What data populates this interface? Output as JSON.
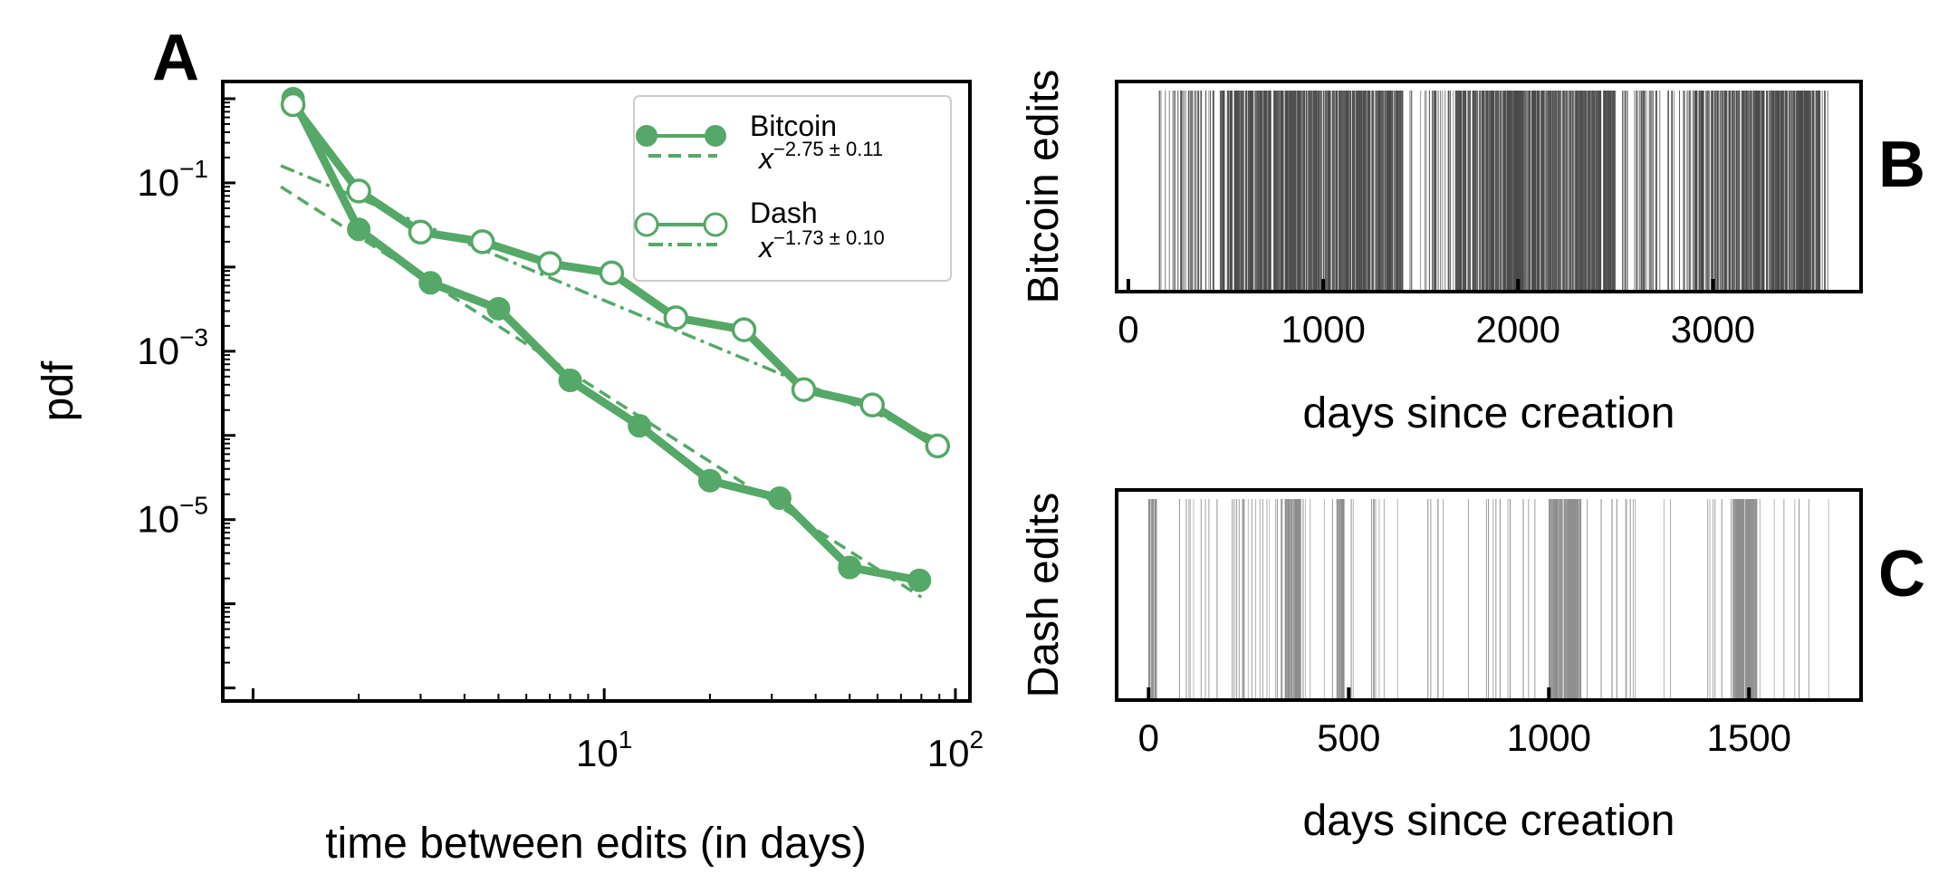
{
  "colors": {
    "green": "#55a868",
    "event_dark": "#4a4a4a",
    "event_light": "#8c8c8c",
    "axis": "#000000"
  },
  "chart_data": [
    {
      "id": "A",
      "panel_label": "A",
      "type": "line",
      "scale": "log-log",
      "xlabel": "time between edits (in days)",
      "ylabel": "pdf",
      "xlim": [
        0.82,
        110
      ],
      "ylim": [
        7e-08,
        1.6
      ],
      "x_ticks": [
        {
          "value": 10,
          "base": "10",
          "exp": "1"
        },
        {
          "value": 100,
          "base": "10",
          "exp": "2"
        }
      ],
      "y_ticks": [
        {
          "value": 0.1,
          "base": "10",
          "exp": "−1"
        },
        {
          "value": 0.001,
          "base": "10",
          "exp": "−3"
        },
        {
          "value": 1e-05,
          "base": "10",
          "exp": "−5"
        }
      ],
      "legend_position": "top-right",
      "series": [
        {
          "name": "Bitcoin",
          "fit_label": "x^(−2.75 ± 0.11)",
          "fit_base": "x",
          "fit_exp": "−2.75 ± 0.11",
          "marker": "filled-circle",
          "fit_style": "dashed",
          "x": [
            1.3,
            2.0,
            3.2,
            5.0,
            8.0,
            12.6,
            20.0,
            31.6,
            50.0,
            79.0
          ],
          "y": [
            1.0,
            0.028,
            0.0065,
            0.0032,
            0.00045,
            0.00013,
            2.9e-05,
            1.8e-05,
            2.7e-06,
            1.9e-06
          ],
          "fit": {
            "x": [
              1.2,
              80
            ],
            "y": [
              0.09,
              1.2e-06
            ]
          }
        },
        {
          "name": "Dash",
          "fit_label": "x^(−1.73 ± 0.10)",
          "fit_base": "x",
          "fit_exp": "−1.73 ± 0.10",
          "marker": "open-circle",
          "fit_style": "dashdot",
          "x": [
            1.3,
            2.0,
            3.0,
            4.5,
            7.0,
            10.5,
            16.0,
            25.0,
            37.0,
            58.0,
            89.0
          ],
          "y": [
            0.85,
            0.08,
            0.026,
            0.02,
            0.011,
            0.0085,
            0.0025,
            0.0018,
            0.00035,
            0.00023,
            7.5e-05
          ],
          "fit": {
            "x": [
              1.2,
              89
            ],
            "y": [
              0.16,
              9e-05
            ]
          }
        }
      ]
    },
    {
      "id": "B",
      "panel_label": "B",
      "type": "event-raster",
      "xlabel": "days since creation",
      "ylabel": "Bitcoin edits",
      "xlim": [
        -60,
        3760
      ],
      "x_ticks": [
        0,
        1000,
        2000,
        3000
      ],
      "event_range": [
        150,
        3600
      ],
      "dense_ranges": [
        [
          480,
          1420
        ],
        [
          1680,
          2500
        ],
        [
          2900,
          3550
        ]
      ],
      "event_count": 1300,
      "shade": "dark"
    },
    {
      "id": "C",
      "panel_label": "C",
      "type": "event-raster",
      "xlabel": "days since creation",
      "ylabel": "Dash edits",
      "xlim": [
        -80,
        1780
      ],
      "x_ticks": [
        0,
        500,
        1000,
        1500
      ],
      "event_range": [
        0,
        1700
      ],
      "dense_ranges": [
        [
          470,
          490
        ],
        [
          1000,
          1080
        ],
        [
          1460,
          1520
        ],
        [
          0,
          20
        ],
        [
          340,
          380
        ]
      ],
      "event_count": 330,
      "shade": "light"
    }
  ]
}
